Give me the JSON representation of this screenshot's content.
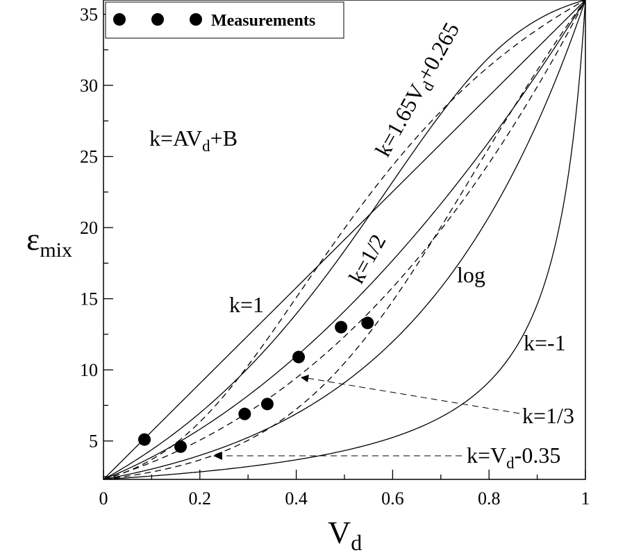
{
  "chart_data": {
    "type": "line",
    "title": "",
    "xlabel": "V",
    "xlabel_sub": "d",
    "ylabel": "ε",
    "ylabel_sub": "mix",
    "xlim": [
      0,
      1
    ],
    "ylim": [
      2.3,
      36
    ],
    "x_ticks": [
      0,
      0.2,
      0.4,
      0.6,
      0.8,
      1
    ],
    "x_tick_labels": [
      "0",
      "0.2",
      "0.4",
      "0.6",
      "0.8",
      "1"
    ],
    "y_ticks": [
      5,
      10,
      15,
      20,
      25,
      30,
      35
    ],
    "y_tick_labels": [
      "5",
      "10",
      "15",
      "20",
      "25",
      "30",
      "35"
    ],
    "grid": false,
    "legend": {
      "position": "top-left",
      "entries": [
        {
          "name": "Measurements",
          "marker": "filled-circle"
        }
      ]
    },
    "endpoints": {
      "eps_at_0": 2.3,
      "eps_at_1": 36
    },
    "series": [
      {
        "id": "k-avd-b",
        "name": "k=AVd+B",
        "style": "solid",
        "model": "power-linear",
        "A": 1.65,
        "B": 0.265,
        "invert": true
      },
      {
        "id": "k-1",
        "name": "k=1",
        "style": "solid",
        "model": "power",
        "k": 1
      },
      {
        "id": "k-1-2",
        "name": "k=1/2",
        "style": "solid",
        "model": "power",
        "k": 0.5
      },
      {
        "id": "log",
        "name": "log",
        "style": "solid",
        "model": "log"
      },
      {
        "id": "k-neg1",
        "name": "k=-1",
        "style": "solid",
        "model": "power",
        "k": -1
      },
      {
        "id": "k-165",
        "name": "k=1.65Vd+0.265",
        "style": "dashed",
        "model": "power-linear",
        "A": 1.65,
        "B": 0.265
      },
      {
        "id": "k-1-3",
        "name": "k=1/3",
        "style": "dashed",
        "model": "power",
        "k": 0.3333
      },
      {
        "id": "k-vd-035",
        "name": "k=Vd-0.35",
        "style": "dashed",
        "model": "power-linear",
        "A": 1,
        "B": -0.35
      }
    ],
    "measurements": {
      "name": "Measurements",
      "x": [
        0.085,
        0.16,
        0.293,
        0.34,
        0.405,
        0.493,
        0.548
      ],
      "y": [
        5.1,
        4.6,
        6.9,
        7.6,
        10.9,
        13.0,
        13.3
      ]
    },
    "annotations": [
      {
        "text": "k=AV",
        "sub": "d",
        "tail": "+B"
      },
      {
        "text": "k=1"
      },
      {
        "text": "k=1.65V",
        "sub": "d",
        "tail": "+0.265"
      },
      {
        "text": "k=1/2"
      },
      {
        "text": "log"
      },
      {
        "text": "k=-1"
      },
      {
        "text": "k=1/3"
      },
      {
        "text": "k=V",
        "sub": "d",
        "tail": "-0.35"
      }
    ]
  }
}
